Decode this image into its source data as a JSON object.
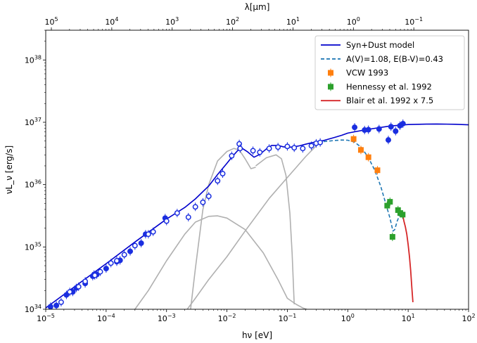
{
  "chart_data": {
    "type": "scatter",
    "xlabel": "hν [eV]",
    "ylabel": "νL_ν [erg/s]",
    "top_xlabel": "λ[μm]",
    "xscale": "log",
    "yscale": "log",
    "xlim": [
      1e-05,
      100
    ],
    "ylim": [
      1e+34,
      3e+38
    ],
    "x_ticks": [
      1e-05,
      0.0001,
      0.001,
      0.01,
      0.1,
      1,
      10,
      100
    ],
    "x_tick_labels": [
      "10^-5",
      "10^-4",
      "10^-3",
      "10^-2",
      "10^-1",
      "10^0",
      "10^1",
      "10^2"
    ],
    "y_ticks": [
      1e+34,
      1e+35,
      1e+36,
      1e+37,
      1e+38
    ],
    "y_tick_labels": [
      "10^34",
      "10^35",
      "10^36",
      "10^37",
      "10^38"
    ],
    "top_ticks_um": [
      100000.0,
      10000.0,
      1000.0,
      100.0,
      10.0,
      1,
      0.1
    ],
    "top_tick_labels": [
      "10^5",
      "10^4",
      "10^3",
      "10^2",
      "10^1",
      "10^0",
      "10^-1"
    ],
    "legend_position": "upper right",
    "series": [
      {
        "name": "Syn+Dust model",
        "kind": "line",
        "color": "#0000cc",
        "x": [
          1e-05,
          3e-05,
          0.0001,
          0.0003,
          0.001,
          0.002,
          0.003,
          0.005,
          0.007,
          0.01,
          0.012,
          0.015,
          0.018,
          0.022,
          0.028,
          0.035,
          0.045,
          0.055,
          0.07,
          0.085,
          0.1,
          0.13,
          0.16,
          0.2,
          0.25,
          0.3,
          0.4,
          0.6,
          0.8,
          1,
          2,
          5,
          10,
          20,
          30,
          60,
          100
        ],
        "y": [
          1.05e+34,
          2.3e+34,
          5.4e+34,
          1.2e+35,
          2.8e+35,
          4.3e+35,
          5.9e+35,
          9.5e+35,
          1.45e+36,
          2.2e+36,
          2.75e+36,
          3.5e+36,
          3.8e+36,
          3.35e+36,
          2.75e+36,
          3.05e+36,
          3.75e+36,
          4.25e+36,
          4.25e+36,
          4.05e+36,
          3.95e+36,
          4.05e+36,
          4.2e+36,
          4.45e+36,
          4.7e+36,
          4.85e+36,
          5.1e+36,
          5.7e+36,
          6.2e+36,
          6.7e+36,
          7.6e+36,
          8.7e+36,
          9.2e+36,
          9.35e+36,
          9.4e+36,
          9.3e+36,
          9.1e+36
        ]
      },
      {
        "name": "A(V)=1.08, E(B-V)=0.43",
        "kind": "dashed",
        "color": "#1f77b4",
        "x": [
          0.4,
          0.6,
          0.8,
          1.0,
          1.3,
          1.7,
          2.2,
          2.8,
          3.5,
          4.2,
          5.0,
          5.6,
          6.0,
          6.6,
          7.3,
          8.0
        ],
        "y": [
          4.9e+36,
          5.1e+36,
          5.2e+36,
          5.15e+36,
          4.8e+36,
          3.9e+36,
          2.7e+36,
          1.7e+36,
          9.5e+35,
          5.2e+35,
          2.9e+35,
          1.8e+35,
          1.9e+35,
          2.6e+35,
          3.3e+35,
          3.6e+35
        ]
      },
      {
        "name": "VCW 1993",
        "kind": "marker",
        "marker": "square",
        "color": "#ff7f0e",
        "x": [
          1.25,
          1.65,
          2.2,
          3.1
        ],
        "y": [
          5.4e+36,
          3.6e+36,
          2.75e+36,
          1.7e+36
        ]
      },
      {
        "name": "Hennessy et al. 1992",
        "kind": "marker",
        "marker": "square",
        "color": "#2ca02c",
        "x": [
          4.5,
          5.0,
          5.5,
          6.8,
          7.4,
          8.1
        ],
        "y": [
          4.6e+35,
          5.3e+35,
          1.45e+35,
          3.9e+35,
          3.5e+35,
          3.3e+35
        ]
      },
      {
        "name": "Blair et al. 1992 x 7.5",
        "kind": "line",
        "color": "#d62728",
        "x": [
          7.0,
          7.5,
          8.0,
          8.5,
          9.0,
          9.5,
          10.0,
          10.5,
          11.0,
          11.5,
          12.0
        ],
        "y": [
          3.8e+35,
          3.2e+35,
          3.5e+35,
          2.6e+35,
          2.1e+35,
          1.6e+35,
          1.1e+35,
          7e+34,
          4.2e+34,
          2.2e+34,
          1.3e+34
        ]
      },
      {
        "name": "",
        "kind": "marker",
        "marker": "circle-filled",
        "color": "#1a2ee0",
        "x": [
          1.2e-05,
          1.5e-05,
          2.2e-05,
          2.8e-05,
          3.2e-05,
          4.5e-05,
          6e-05,
          6.3e-05,
          7e-05,
          0.0001,
          0.00015,
          0.00017,
          0.00025,
          0.00038,
          0.00045,
          0.00095,
          1.3,
          1.9,
          2.2,
          3.3,
          4.7,
          5.2,
          6.2,
          7.3,
          8.2
        ],
        "y": [
          1.1e+34,
          1.15e+34,
          1.7e+34,
          1.9e+34,
          2.2e+34,
          2.6e+34,
          3.4e+34,
          3.6e+34,
          3.6e+34,
          4.5e+34,
          5.8e+34,
          6.1e+34,
          8.5e+34,
          1.15e+35,
          1.6e+35,
          2.9e+35,
          8.3e+36,
          7.5e+36,
          7.6e+36,
          7.8e+36,
          5.2e+36,
          8.5e+36,
          7.2e+36,
          8.8e+36,
          9.5e+36
        ]
      },
      {
        "name": "",
        "kind": "marker",
        "marker": "circle-open",
        "color": "#1a2ee0",
        "x": [
          1.8e-05,
          2.5e-05,
          3.5e-05,
          4.5e-05,
          6.5e-05,
          8e-05,
          0.00012,
          0.00015,
          0.0002,
          0.0003,
          0.0005,
          0.0006,
          0.001,
          0.0015,
          0.0023,
          0.003,
          0.004,
          0.005,
          0.007,
          0.0085,
          0.012,
          0.016,
          0.0165,
          0.027,
          0.035,
          0.05,
          0.07,
          0.1,
          0.13,
          0.18,
          0.25,
          0.3,
          0.35
        ],
        "y": [
          1.3e+34,
          1.9e+34,
          2.3e+34,
          2.8e+34,
          3.5e+34,
          4e+34,
          5.5e+34,
          6e+34,
          7.5e+34,
          1.05e+35,
          1.6e+35,
          1.75e+35,
          2.6e+35,
          3.5e+35,
          3e+35,
          4.4e+35,
          5.2e+35,
          6.5e+35,
          1.15e+36,
          1.5e+36,
          2.9e+36,
          4.5e+36,
          3.8e+36,
          3.5e+36,
          3.3e+36,
          3.8e+36,
          4e+36,
          4.1e+36,
          3.9e+36,
          3.8e+36,
          4.2e+36,
          4.6e+36,
          4.75e+36
        ]
      },
      {
        "name": "",
        "kind": "line",
        "color": "#b0b0b0",
        "x": [
          0.0003,
          0.0005,
          0.001,
          0.002,
          0.003,
          0.005,
          0.007,
          0.01,
          0.02,
          0.04,
          0.07,
          0.1,
          0.14,
          0.18,
          0.21
        ],
        "y": [
          1e+34,
          2e+34,
          6e+34,
          1.6e+35,
          2.5e+35,
          3.1e+35,
          3.15e+35,
          2.9e+35,
          1.9e+35,
          8e+34,
          3e+34,
          1.5e+34,
          1.2e+34,
          1.05e+34,
          1e+34
        ]
      },
      {
        "name": "",
        "kind": "line",
        "color": "#b0b0b0",
        "x": [
          0.0025,
          0.003,
          0.004,
          0.005,
          0.007,
          0.01,
          0.013,
          0.016,
          0.02,
          0.025,
          0.03
        ],
        "y": [
          1e+34,
          4.5e+34,
          4e+35,
          1e+36,
          2.4e+36,
          3.4e+36,
          3.8e+36,
          3.6e+36,
          2.6e+36,
          1.8e+36,
          1.9e+36
        ]
      },
      {
        "name": "",
        "kind": "line",
        "color": "#b0b0b0",
        "x": [
          0.03,
          0.045,
          0.065,
          0.08,
          0.095,
          0.11,
          0.12,
          0.13
        ],
        "y": [
          2e+36,
          2.7e+36,
          3e+36,
          2.6e+36,
          1.4e+36,
          3.5e+35,
          8e+34,
          1.2e+34
        ]
      },
      {
        "name": "",
        "kind": "line",
        "color": "#b0b0b0",
        "x": [
          0.0022,
          0.003,
          0.005,
          0.01,
          0.02,
          0.05,
          0.1,
          0.2,
          0.3,
          0.35
        ],
        "y": [
          1e+34,
          1.5e+34,
          3e+34,
          7e+34,
          1.8e+35,
          6e+35,
          1.3e+36,
          2.8e+36,
          4.2e+36,
          4.8e+36
        ]
      }
    ]
  }
}
